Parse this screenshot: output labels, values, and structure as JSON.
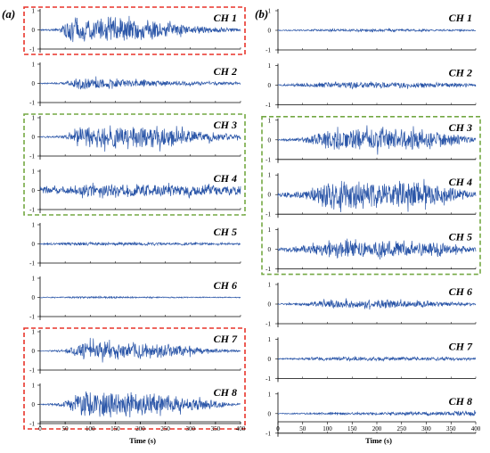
{
  "colors": {
    "signal": "#2b56a8",
    "axis": "#000000",
    "highlight_red": "#e8342a",
    "highlight_green": "#74a843",
    "background": "#ffffff"
  },
  "chart_data": [
    {
      "type": "line",
      "panel_label": "(a)",
      "xlabel": "Time (s)",
      "ylabel": "",
      "xlim": [
        0,
        400
      ],
      "ylim": [
        -1,
        1
      ],
      "x_ticks": [
        0,
        50,
        100,
        150,
        200,
        250,
        300,
        350,
        400
      ],
      "y_ticks": [
        1,
        0,
        -1
      ],
      "grid": false,
      "series": [
        {
          "name": "CH 1",
          "envelope_x": [
            0,
            40,
            60,
            100,
            200,
            250,
            300,
            400
          ],
          "envelope_amplitude": [
            0.05,
            0.1,
            0.85,
            0.9,
            0.8,
            0.6,
            0.3,
            0.12
          ]
        },
        {
          "name": "CH 2",
          "envelope_x": [
            0,
            50,
            80,
            120,
            200,
            300,
            400
          ],
          "envelope_amplitude": [
            0.03,
            0.08,
            0.45,
            0.35,
            0.25,
            0.15,
            0.08
          ]
        },
        {
          "name": "CH 3",
          "envelope_x": [
            0,
            50,
            90,
            150,
            250,
            300,
            400
          ],
          "envelope_amplitude": [
            0.05,
            0.1,
            0.8,
            0.8,
            0.75,
            0.45,
            0.2
          ]
        },
        {
          "name": "CH 4",
          "envelope_x": [
            0,
            50,
            100,
            200,
            300,
            400
          ],
          "envelope_amplitude": [
            0.25,
            0.3,
            0.5,
            0.45,
            0.45,
            0.35
          ]
        },
        {
          "name": "CH 5",
          "envelope_x": [
            0,
            100,
            200,
            300,
            400
          ],
          "envelope_amplitude": [
            0.06,
            0.12,
            0.1,
            0.1,
            0.06
          ]
        },
        {
          "name": "CH 6",
          "envelope_x": [
            0,
            100,
            200,
            300,
            400
          ],
          "envelope_amplitude": [
            0.03,
            0.07,
            0.05,
            0.04,
            0.03
          ]
        },
        {
          "name": "CH 7",
          "envelope_x": [
            0,
            50,
            90,
            150,
            250,
            350,
            400
          ],
          "envelope_amplitude": [
            0.02,
            0.1,
            0.7,
            0.6,
            0.5,
            0.15,
            0.05
          ]
        },
        {
          "name": "CH 8",
          "envelope_x": [
            0,
            50,
            80,
            150,
            250,
            350,
            400
          ],
          "envelope_amplitude": [
            0.02,
            0.2,
            0.95,
            0.85,
            0.7,
            0.25,
            0.05
          ]
        }
      ]
    },
    {
      "type": "line",
      "panel_label": "(b)",
      "xlabel": "Time (s)",
      "ylabel": "",
      "xlim": [
        0,
        400
      ],
      "ylim": [
        -1,
        1
      ],
      "x_ticks": [
        0,
        50,
        100,
        150,
        200,
        250,
        300,
        350,
        400
      ],
      "y_ticks": [
        1,
        0,
        -1
      ],
      "grid": false,
      "series": [
        {
          "name": "CH 1",
          "envelope_x": [
            0,
            100,
            200,
            300,
            400
          ],
          "envelope_amplitude": [
            0.03,
            0.08,
            0.1,
            0.08,
            0.05
          ]
        },
        {
          "name": "CH 2",
          "envelope_x": [
            0,
            100,
            200,
            300,
            400
          ],
          "envelope_amplitude": [
            0.05,
            0.2,
            0.22,
            0.2,
            0.12
          ]
        },
        {
          "name": "CH 3",
          "envelope_x": [
            0,
            50,
            110,
            200,
            300,
            350,
            400
          ],
          "envelope_amplitude": [
            0.05,
            0.15,
            0.75,
            0.8,
            0.7,
            0.4,
            0.15
          ]
        },
        {
          "name": "CH 4",
          "envelope_x": [
            0,
            50,
            100,
            200,
            300,
            350,
            400
          ],
          "envelope_amplitude": [
            0.15,
            0.3,
            0.95,
            1.0,
            0.85,
            0.5,
            0.2
          ]
        },
        {
          "name": "CH 5",
          "envelope_x": [
            0,
            50,
            100,
            200,
            300,
            350,
            400
          ],
          "envelope_amplitude": [
            0.1,
            0.25,
            0.55,
            0.6,
            0.5,
            0.35,
            0.15
          ]
        },
        {
          "name": "CH 6",
          "envelope_x": [
            0,
            50,
            100,
            200,
            300,
            400
          ],
          "envelope_amplitude": [
            0.03,
            0.1,
            0.3,
            0.3,
            0.2,
            0.08
          ]
        },
        {
          "name": "CH 7",
          "envelope_x": [
            0,
            100,
            200,
            300,
            400
          ],
          "envelope_amplitude": [
            0.03,
            0.12,
            0.15,
            0.13,
            0.1
          ]
        },
        {
          "name": "CH 8",
          "envelope_x": [
            0,
            100,
            200,
            300,
            400
          ],
          "envelope_amplitude": [
            0.03,
            0.08,
            0.1,
            0.12,
            0.2
          ]
        }
      ]
    }
  ],
  "highlights": [
    {
      "panel": 0,
      "channels": [
        "CH 1"
      ],
      "color": "highlight_red"
    },
    {
      "panel": 0,
      "channels": [
        "CH 3",
        "CH 4"
      ],
      "color": "highlight_green"
    },
    {
      "panel": 0,
      "channels": [
        "CH 7",
        "CH 8"
      ],
      "color": "highlight_red"
    },
    {
      "panel": 1,
      "channels": [
        "CH 3",
        "CH 4",
        "CH 5"
      ],
      "color": "highlight_green"
    }
  ]
}
